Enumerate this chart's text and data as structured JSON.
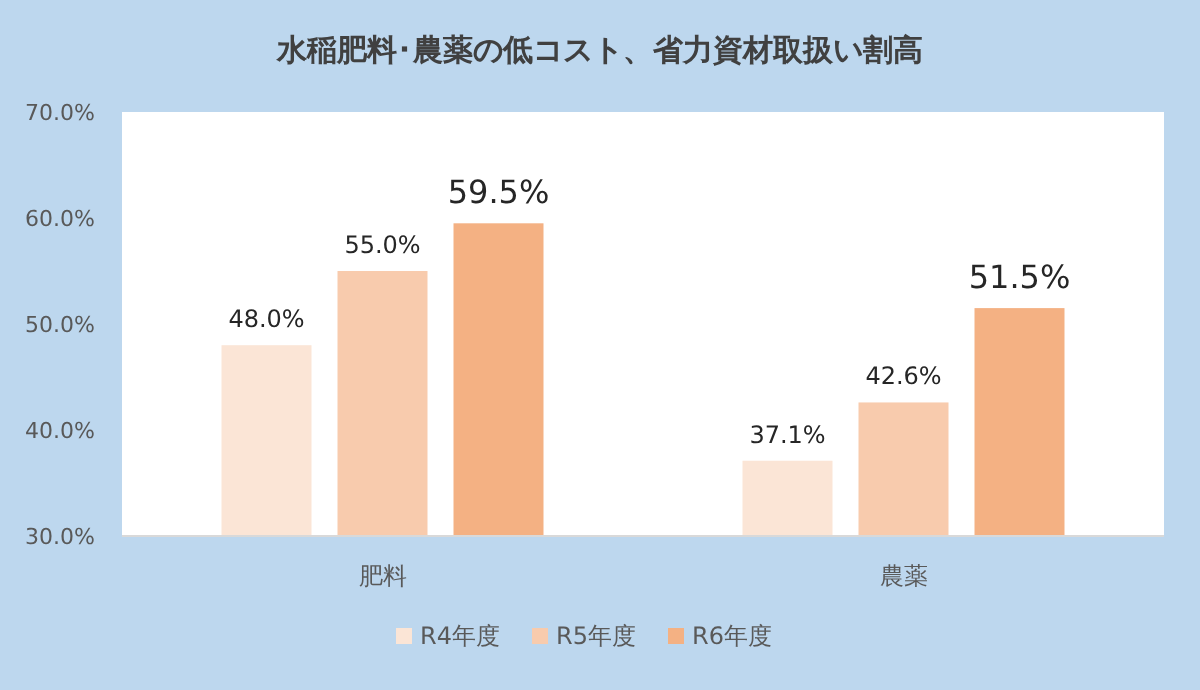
{
  "chart_data": {
    "type": "bar",
    "title": "水稲肥料･農薬の低コスト、省力資材取扱い割高",
    "categories": [
      "肥料",
      "農薬"
    ],
    "series": [
      {
        "name": "R4年度",
        "color": "#fbe5d6",
        "values": [
          48.0,
          37.1
        ],
        "value_labels": [
          "48.0%",
          "37.1%"
        ]
      },
      {
        "name": "R5年度",
        "color": "#f8cbad",
        "values": [
          55.0,
          42.6
        ],
        "value_labels": [
          "55.0%",
          "42.6%"
        ]
      },
      {
        "name": "R6年度",
        "color": "#f4b183",
        "values": [
          59.5,
          51.5
        ],
        "value_labels": [
          "59.5%",
          "51.5%"
        ]
      }
    ],
    "ylim": [
      30,
      70
    ],
    "yticks": [
      {
        "value": 30,
        "label": "30.0%"
      },
      {
        "value": 40,
        "label": "40.0%"
      },
      {
        "value": 50,
        "label": "50.0%"
      },
      {
        "value": 60,
        "label": "60.0%"
      },
      {
        "value": 70,
        "label": "70.0%"
      }
    ],
    "legend": "bottom"
  }
}
